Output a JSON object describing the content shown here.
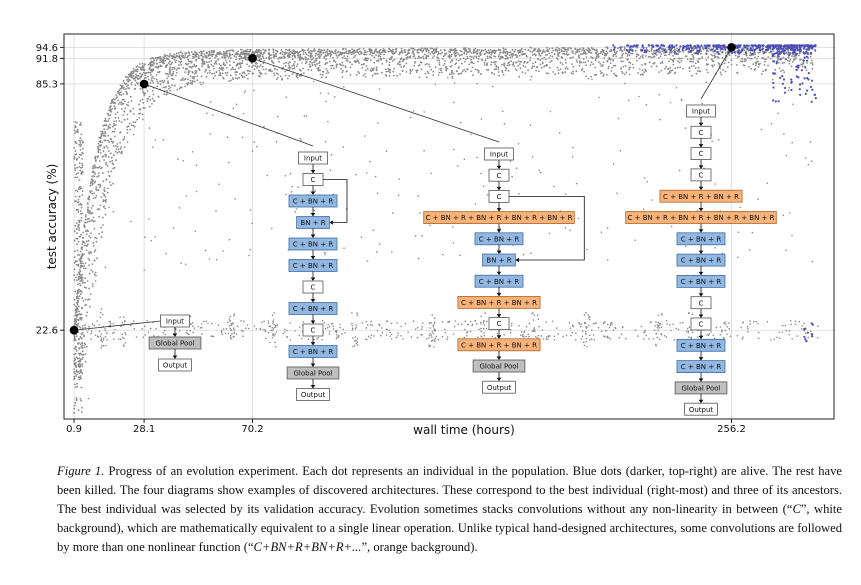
{
  "chart_data": {
    "type": "scatter",
    "xlabel": "wall time (hours)",
    "ylabel": "test accuracy (%)",
    "x_ticks": [
      0.9,
      28.1,
      70.2,
      256.2
    ],
    "y_ticks": [
      22.6,
      85.3,
      91.8,
      94.6
    ],
    "xlim": [
      -3,
      296
    ],
    "ylim": [
      0,
      98
    ],
    "highlighted_points": [
      {
        "x": 0.9,
        "y": 22.6
      },
      {
        "x": 28.1,
        "y": 85.3
      },
      {
        "x": 70.2,
        "y": 91.8
      },
      {
        "x": 256.2,
        "y": 94.6
      }
    ],
    "series": [
      {
        "color": "#8a8a8a"
      },
      {
        "color": "#4c4fb8"
      }
    ],
    "grid": true
  },
  "diagrams": [
    {
      "nodes": [
        {
          "label": "Input",
          "kind": "plain"
        },
        {
          "label": "Global Pool",
          "kind": "pool"
        },
        {
          "label": "Output",
          "kind": "plain"
        }
      ]
    },
    {
      "nodes": [
        {
          "label": "Input",
          "kind": "plain"
        },
        {
          "label": "C",
          "kind": "plain"
        },
        {
          "label": "C + BN + R",
          "kind": "blue"
        },
        {
          "label": "BN + R",
          "kind": "blue"
        },
        {
          "label": "C + BN + R",
          "kind": "blue"
        },
        {
          "label": "C + BN + R",
          "kind": "blue"
        },
        {
          "label": "C",
          "kind": "plain"
        },
        {
          "label": "C + BN + R",
          "kind": "blue"
        },
        {
          "label": "C",
          "kind": "plain"
        },
        {
          "label": "C + BN + R",
          "kind": "blue"
        },
        {
          "label": "Global Pool",
          "kind": "pool"
        },
        {
          "label": "Output",
          "kind": "plain"
        }
      ],
      "skip": [
        1,
        3
      ]
    },
    {
      "nodes": [
        {
          "label": "Input",
          "kind": "plain"
        },
        {
          "label": "C",
          "kind": "plain"
        },
        {
          "label": "C",
          "kind": "plain"
        },
        {
          "label": "C + BN + R + BN + R + BN + R + BN + R",
          "kind": "orange"
        },
        {
          "label": "C + BN + R",
          "kind": "blue"
        },
        {
          "label": "BN + R",
          "kind": "blue"
        },
        {
          "label": "C + BN + R",
          "kind": "blue"
        },
        {
          "label": "C + BN + R + BN + R",
          "kind": "orange"
        },
        {
          "label": "C",
          "kind": "plain"
        },
        {
          "label": "C + BN + R + BN + R",
          "kind": "orange"
        },
        {
          "label": "Global Pool",
          "kind": "pool"
        },
        {
          "label": "Output",
          "kind": "plain"
        }
      ],
      "skip": [
        2,
        5
      ]
    },
    {
      "nodes": [
        {
          "label": "Input",
          "kind": "plain"
        },
        {
          "label": "C",
          "kind": "plain"
        },
        {
          "label": "C",
          "kind": "plain"
        },
        {
          "label": "C",
          "kind": "plain"
        },
        {
          "label": "C + BN + R + BN + R",
          "kind": "orange"
        },
        {
          "label": "C + BN + R + BN + R + BN + R + BN + R",
          "kind": "orange"
        },
        {
          "label": "C + BN + R",
          "kind": "blue"
        },
        {
          "label": "C + BN + R",
          "kind": "blue"
        },
        {
          "label": "C + BN + R",
          "kind": "blue"
        },
        {
          "label": "C",
          "kind": "plain"
        },
        {
          "label": "C",
          "kind": "plain"
        },
        {
          "label": "C + BN + R",
          "kind": "blue"
        },
        {
          "label": "C + BN + R",
          "kind": "blue"
        },
        {
          "label": "Global Pool",
          "kind": "pool"
        },
        {
          "label": "Output",
          "kind": "plain"
        }
      ]
    }
  ],
  "caption": {
    "label": "Figure 1.",
    "text_1": " Progress of an evolution experiment. Each dot represents an individual in the population. Blue dots (darker, top-right) are alive. The rest have been killed. The four diagrams show examples of discovered architectures. These correspond to the best individual (right-most) and three of its ancestors. The best individual was selected by its validation accuracy. Evolution sometimes stacks convolutions without any non-linearity in between (“",
    "math_1": "C",
    "text_2": "”, white background), which are mathematically equivalent to a single linear operation. Unlike typical hand-designed architectures, some convolutions are followed by more than one nonlinear function (“",
    "math_2": "C+BN+R+BN+R+...",
    "text_3": "”, orange background)."
  }
}
